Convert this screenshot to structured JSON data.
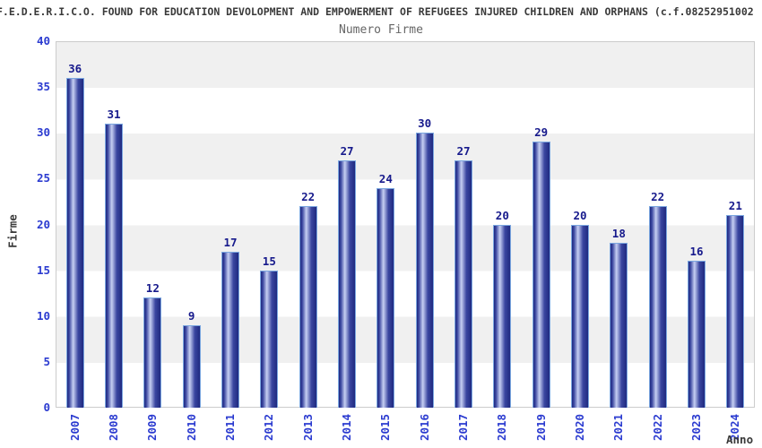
{
  "header": {
    "title": "F.E.D.E.R.I.C.O. FOUND FOR EDUCATION DEVOLOPMENT AND EMPOWERMENT OF REFUGEES INJURED CHILDREN AND ORPHANS (c.f.08252951002",
    "subtitle": "Numero Firme"
  },
  "chart_data": {
    "type": "bar",
    "title": "Numero Firme",
    "xlabel": "Anno",
    "ylabel": "Firme",
    "categories": [
      "2007",
      "2008",
      "2009",
      "2010",
      "2011",
      "2012",
      "2013",
      "2014",
      "2015",
      "2016",
      "2017",
      "2018",
      "2019",
      "2020",
      "2021",
      "2022",
      "2023",
      "2024"
    ],
    "values": [
      36,
      31,
      12,
      9,
      17,
      15,
      22,
      27,
      24,
      30,
      27,
      20,
      29,
      20,
      18,
      22,
      16,
      21
    ],
    "ylim": [
      0,
      40
    ],
    "ytick_step": 5,
    "grid": "horizontal alternating bands every 5 units",
    "legend": "none",
    "bar_labels_shown": true,
    "x_labels_rotated_degrees": 90
  },
  "colors": {
    "bar_dark": "#1f2a80",
    "bar_mid": "#3a46a0",
    "bar_light": "#c6cff2",
    "bar_border": "#7ba7e0",
    "tick_label_blue": "#2b3bd0",
    "value_label_navy": "#171a8c",
    "band_gray": "#f0f0f0",
    "band_white": "#ffffff",
    "plot_border": "#cccccc",
    "title_color": "#3a3a3a",
    "subtitle_color": "#666666"
  }
}
